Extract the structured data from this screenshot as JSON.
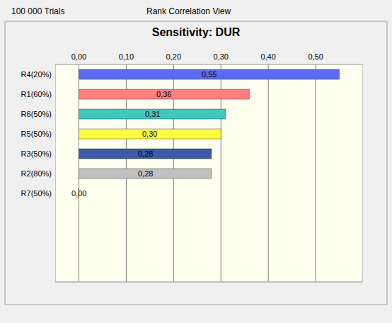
{
  "chart_data": {
    "type": "bar",
    "orientation": "horizontal",
    "title": "Sensitivity: DUR",
    "annotations": [
      "100 000 Trials",
      "Rank Correlation View"
    ],
    "categories": [
      "R4(20%)",
      "R1(60%)",
      "R6(50%)",
      "R5(50%)",
      "R3(50%)",
      "R2(80%)",
      "R7(50%)"
    ],
    "values": [
      0.55,
      0.36,
      0.31,
      0.3,
      0.28,
      0.28,
      0.0
    ],
    "value_labels": [
      "0,55",
      "0,36",
      "0,31",
      "0,30",
      "0,28",
      "0,28",
      "0,00"
    ],
    "colors": [
      "#5b6bf2",
      "#ff7f7f",
      "#40c8c0",
      "#ffff40",
      "#3c5aa8",
      "#c0c0c0",
      "#c0c0c0"
    ],
    "xlim": [
      -0.05,
      0.6
    ],
    "xticks": [
      {
        "value": 0,
        "label": "0,00"
      },
      {
        "value": 0.1,
        "label": "0,10"
      },
      {
        "value": 0.2,
        "label": "0,20"
      },
      {
        "value": 0.3,
        "label": "0,30"
      },
      {
        "value": 0.4,
        "label": "0,40"
      },
      {
        "value": 0.5,
        "label": "0,50"
      }
    ],
    "grid": true,
    "data_labels": true
  }
}
